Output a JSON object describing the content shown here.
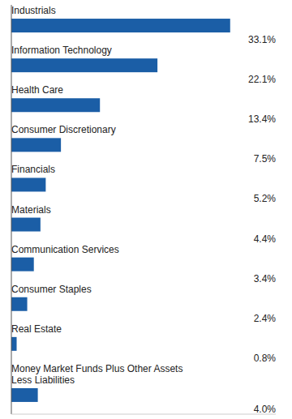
{
  "chart_data": {
    "type": "bar",
    "orientation": "horizontal",
    "categories": [
      "Industrials",
      "Information Technology",
      "Health Care",
      "Consumer Discretionary",
      "Financials",
      "Materials",
      "Communication Services",
      "Consumer Staples",
      "Real Estate",
      "Money Market Funds Plus Other Assets\nLess Liabilities"
    ],
    "values": [
      33.1,
      22.1,
      13.4,
      7.5,
      5.2,
      4.4,
      3.4,
      2.4,
      0.8,
      4.0
    ],
    "value_labels": [
      "33.1%",
      "22.1%",
      "13.4%",
      "7.5%",
      "5.2%",
      "4.4%",
      "3.4%",
      "2.4%",
      "0.8%",
      "4.0%"
    ],
    "color": "#1B5EA6",
    "xlim": [
      0,
      40
    ],
    "tick_labels": false,
    "data_labels": true
  }
}
